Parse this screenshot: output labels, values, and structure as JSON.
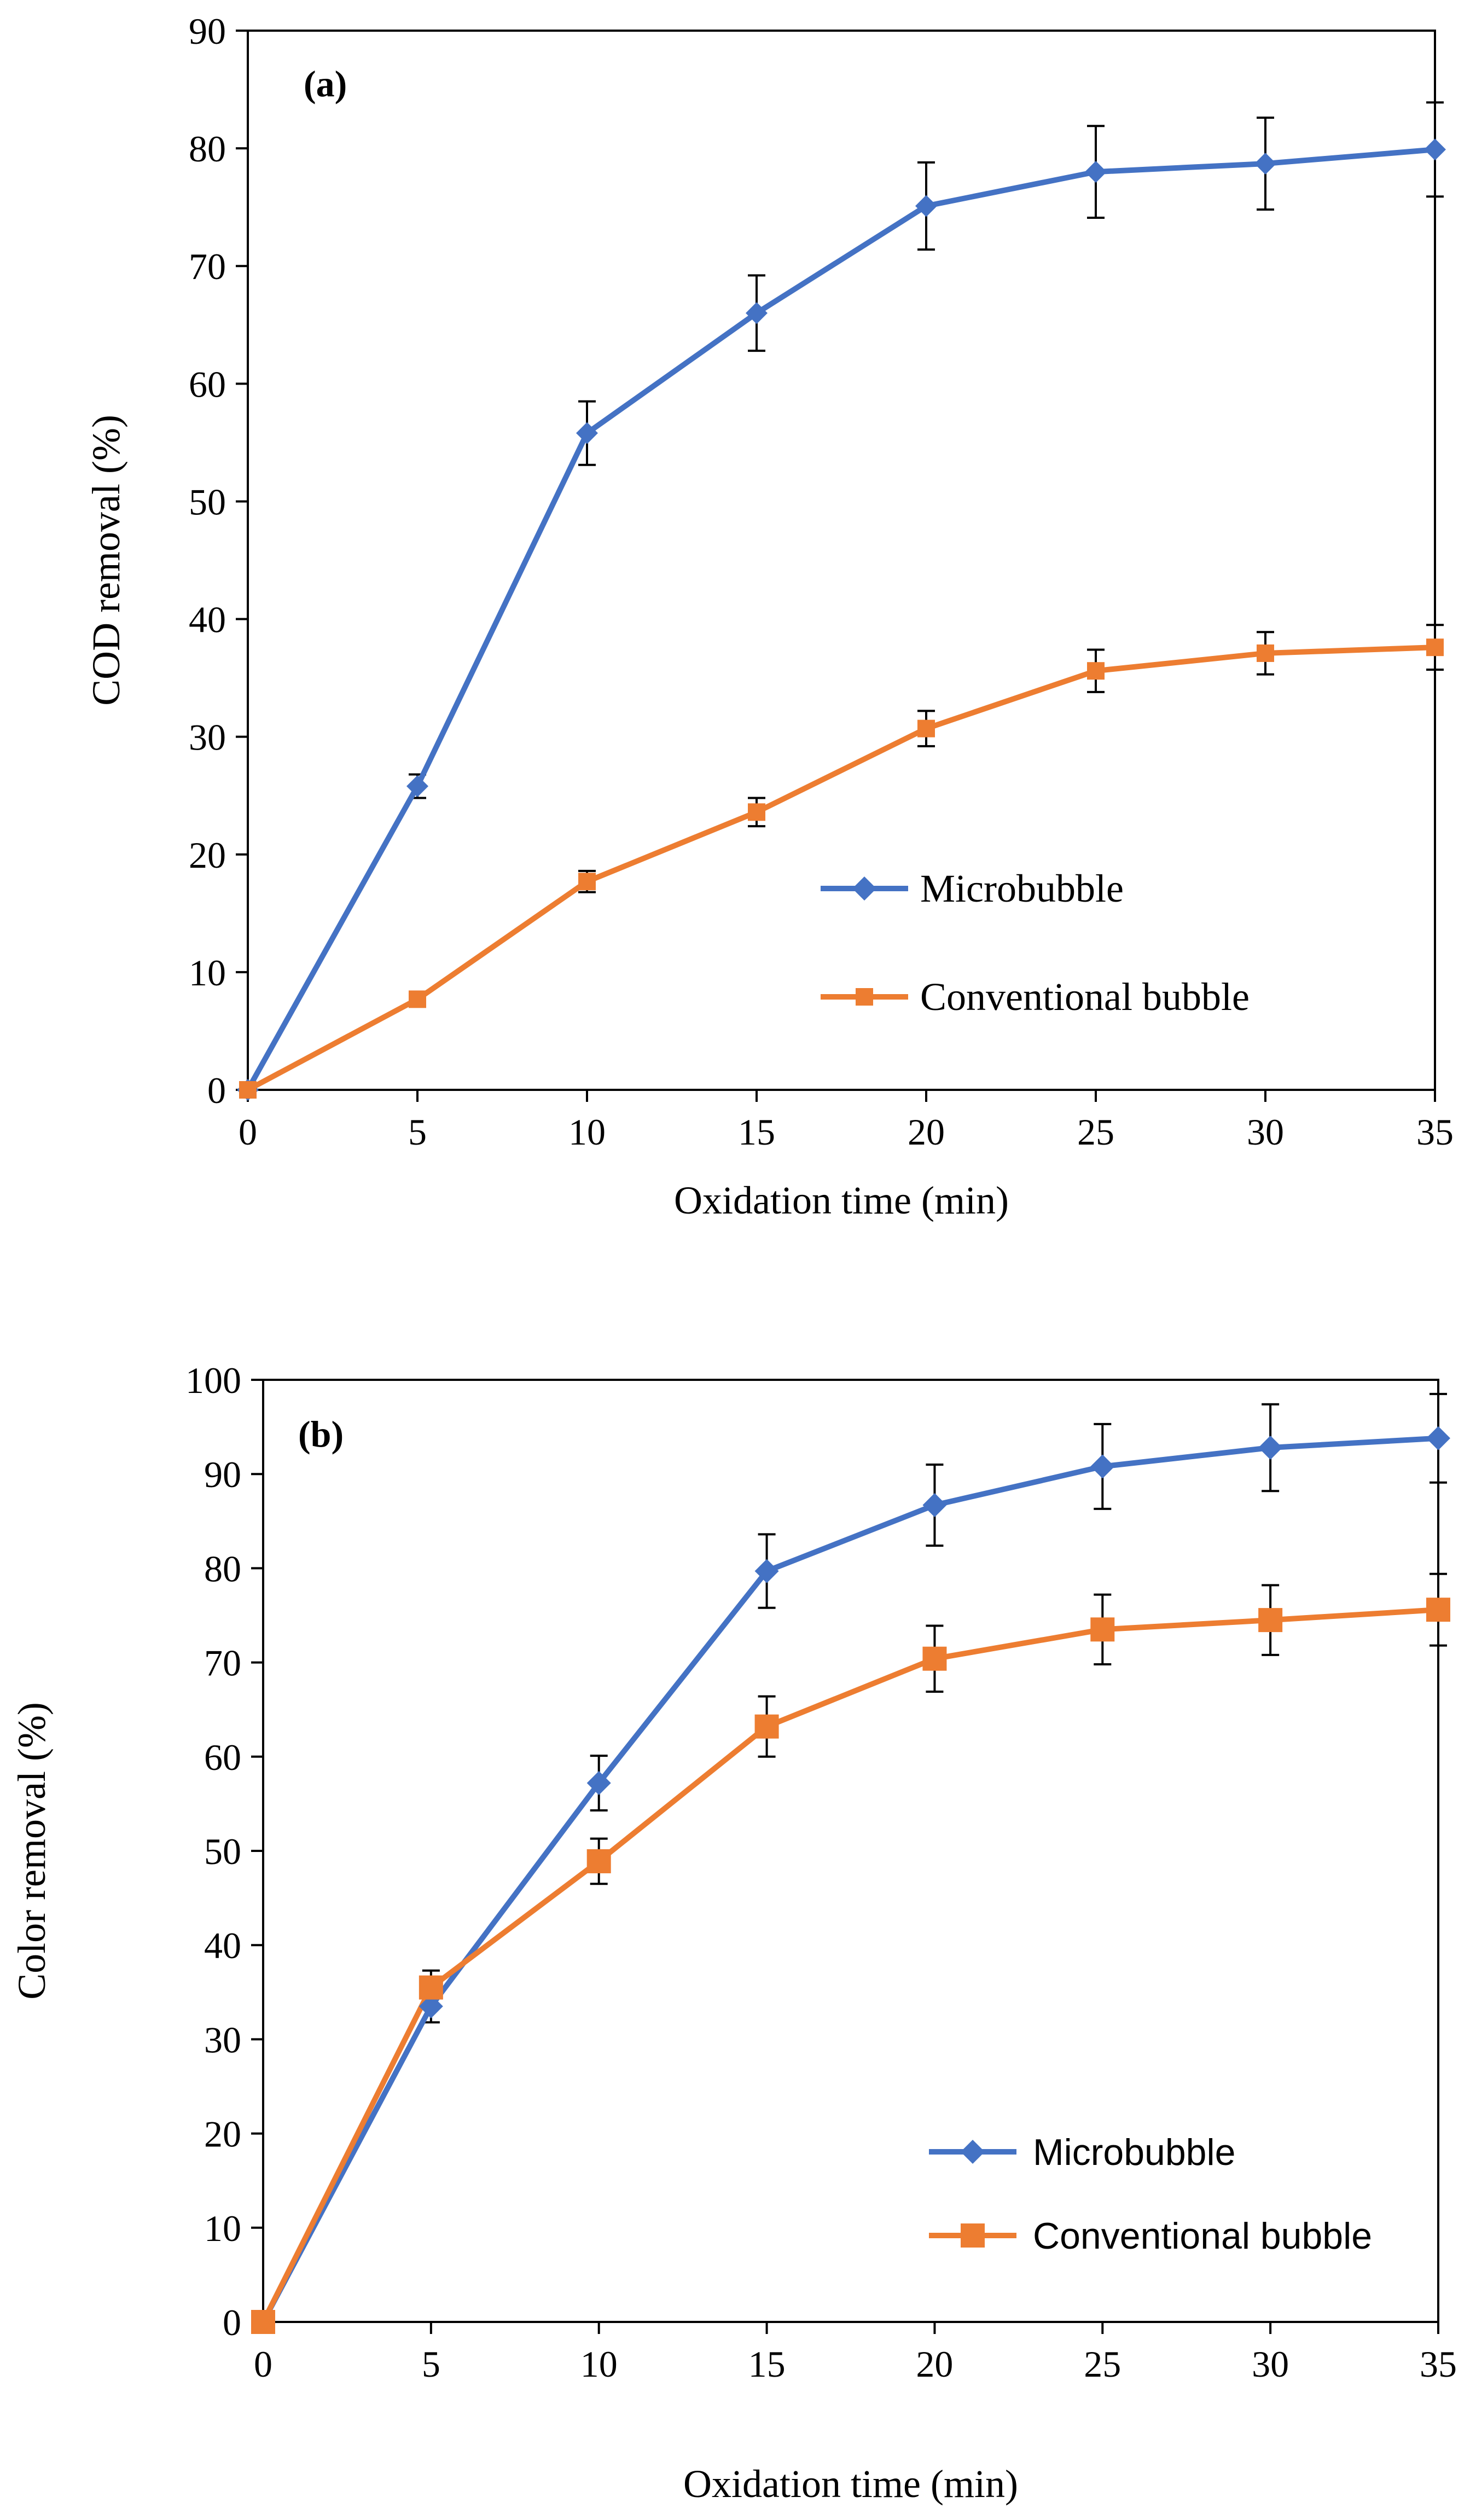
{
  "chart_data": [
    {
      "type": "line",
      "panel_label": "(a)",
      "panel_letter": "a",
      "xlabel": "Oxidation time (min)",
      "ylabel": "COD removal (%)",
      "x": [
        0,
        5,
        10,
        15,
        20,
        25,
        30,
        35
      ],
      "xlim": [
        0,
        35
      ],
      "ylim": [
        0,
        90
      ],
      "xticks": [
        0,
        5,
        10,
        15,
        20,
        25,
        30,
        35
      ],
      "yticks": [
        0,
        10,
        20,
        30,
        40,
        50,
        60,
        70,
        80,
        90
      ],
      "grid": false,
      "legend_position": "bottom-right",
      "series": [
        {
          "name": "Microbubble",
          "marker": "diamond",
          "color": "#4472C4",
          "values": [
            0,
            25.8,
            55.8,
            66,
            75.1,
            78,
            78.7,
            79.9
          ],
          "errors": [
            0,
            1,
            2.7,
            3.2,
            3.7,
            3.9,
            3.9,
            4
          ]
        },
        {
          "name": "Conventional bubble",
          "marker": "square",
          "color": "#ED7D31",
          "values": [
            0,
            7.7,
            17.7,
            23.6,
            30.7,
            35.6,
            37.1,
            37.6
          ],
          "errors": [
            0,
            0.3,
            0.9,
            1.2,
            1.5,
            1.8,
            1.8,
            1.9
          ]
        }
      ]
    },
    {
      "type": "line",
      "panel_label": "(b)",
      "panel_letter": "b",
      "xlabel": "Oxidation time (min)",
      "ylabel": "Color removal (%)",
      "x": [
        0,
        5,
        10,
        15,
        20,
        25,
        30,
        35
      ],
      "xlim": [
        0,
        35
      ],
      "ylim": [
        0,
        100
      ],
      "xticks": [
        0,
        5,
        10,
        15,
        20,
        25,
        30,
        35
      ],
      "yticks": [
        0,
        10,
        20,
        30,
        40,
        50,
        60,
        70,
        80,
        90,
        100
      ],
      "grid": false,
      "legend_position": "bottom-right",
      "series": [
        {
          "name": "Microbubble",
          "marker": "diamond",
          "color": "#4472C4",
          "values": [
            0,
            33.5,
            57.2,
            79.7,
            86.7,
            90.8,
            92.8,
            93.8
          ],
          "errors": [
            0,
            1.7,
            2.9,
            3.9,
            4.3,
            4.5,
            4.6,
            4.7
          ]
        },
        {
          "name": "Conventional bubble",
          "marker": "square",
          "color": "#ED7D31",
          "values": [
            0,
            35.5,
            48.9,
            63.2,
            70.4,
            73.5,
            74.5,
            75.6
          ],
          "errors": [
            0,
            1.8,
            2.4,
            3.2,
            3.5,
            3.7,
            3.7,
            3.8
          ]
        }
      ]
    }
  ]
}
